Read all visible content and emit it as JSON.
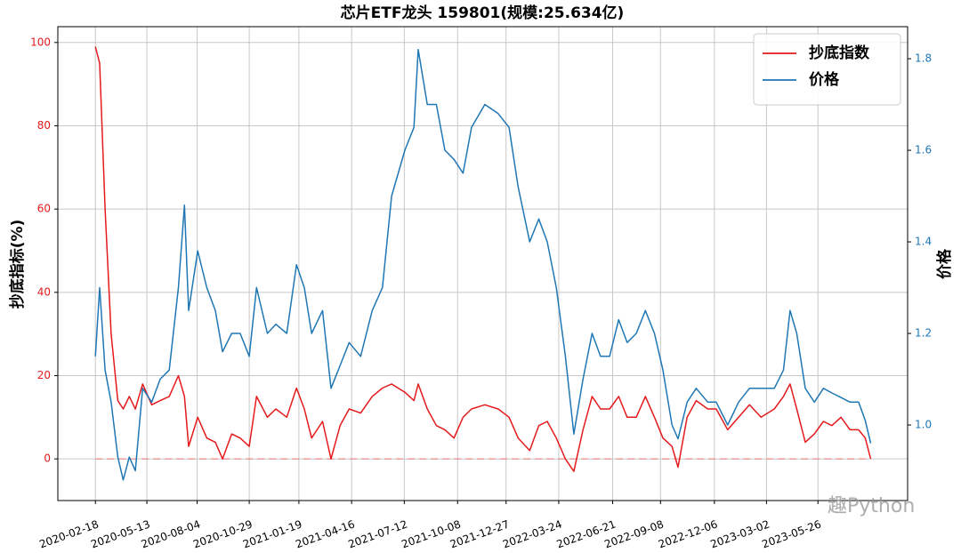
{
  "chart_data": {
    "type": "line",
    "title": "芯片ETF龙头  159801(规模:25.634亿)",
    "ylabel": "抄底指标(%)",
    "y2label": "价格",
    "watermark": "趣Python",
    "x": [
      "2020-02-18",
      "2020-02-25",
      "2020-03-05",
      "2020-03-15",
      "2020-03-26",
      "2020-04-04",
      "2020-04-14",
      "2020-04-24",
      "2020-05-06",
      "2020-05-21",
      "2020-06-04",
      "2020-06-19",
      "2020-07-04",
      "2020-07-14",
      "2020-07-21",
      "2020-08-05",
      "2020-08-20",
      "2020-09-03",
      "2020-09-15",
      "2020-09-30",
      "2020-10-14",
      "2020-10-29",
      "2020-11-10",
      "2020-11-28",
      "2020-12-12",
      "2020-12-30",
      "2021-01-15",
      "2021-01-28",
      "2021-02-09",
      "2021-02-27",
      "2021-03-13",
      "2021-03-28",
      "2021-04-12",
      "2021-05-01",
      "2021-05-20",
      "2021-06-06",
      "2021-06-21",
      "2021-07-13",
      "2021-07-28",
      "2021-08-04",
      "2021-08-19",
      "2021-09-03",
      "2021-09-17",
      "2021-10-02",
      "2021-10-17",
      "2021-10-31",
      "2021-11-22",
      "2021-12-14",
      "2022-01-01",
      "2022-01-16",
      "2022-02-04",
      "2022-02-19",
      "2022-03-05",
      "2022-03-20",
      "2022-04-04",
      "2022-04-18",
      "2022-05-03",
      "2022-05-18",
      "2022-06-01",
      "2022-06-16",
      "2022-07-01",
      "2022-07-15",
      "2022-07-30",
      "2022-08-14",
      "2022-08-29",
      "2022-09-12",
      "2022-09-27",
      "2022-10-07",
      "2022-10-22",
      "2022-11-06",
      "2022-11-25",
      "2022-12-09",
      "2022-12-28",
      "2023-01-15",
      "2023-02-02",
      "2023-02-21",
      "2023-03-15",
      "2023-03-30",
      "2023-04-10",
      "2023-04-21",
      "2023-05-05",
      "2023-05-20",
      "2023-06-04",
      "2023-06-18",
      "2023-07-03",
      "2023-07-18",
      "2023-08-01",
      "2023-08-12",
      "2023-08-21"
    ],
    "series": [
      {
        "name": "抄底指数",
        "color": "#e41a1c",
        "axis": "y",
        "values": [
          99,
          95,
          60,
          30,
          14,
          12,
          15,
          12,
          18,
          13,
          14,
          15,
          20,
          15,
          3,
          10,
          5,
          4,
          0,
          6,
          5,
          3,
          15,
          10,
          12,
          10,
          17,
          12,
          5,
          9,
          0,
          8,
          12,
          11,
          15,
          17,
          18,
          16,
          14,
          18,
          12,
          8,
          7,
          5,
          10,
          12,
          13,
          12,
          10,
          5,
          2,
          8,
          9,
          5,
          0,
          -3,
          7,
          15,
          12,
          12,
          15,
          10,
          10,
          15,
          10,
          5,
          3,
          -2,
          10,
          14,
          12,
          12,
          7,
          10,
          13,
          10,
          12,
          15,
          18,
          12,
          4,
          6,
          9,
          8,
          10,
          7,
          7,
          5,
          0
        ]
      },
      {
        "name": "价格",
        "color": "#1f77b4",
        "axis": "y2",
        "values": [
          1.15,
          1.3,
          1.12,
          1.05,
          0.93,
          0.88,
          0.93,
          0.9,
          1.08,
          1.05,
          1.1,
          1.12,
          1.3,
          1.48,
          1.25,
          1.38,
          1.3,
          1.25,
          1.16,
          1.2,
          1.2,
          1.15,
          1.3,
          1.2,
          1.22,
          1.2,
          1.35,
          1.3,
          1.2,
          1.25,
          1.08,
          1.13,
          1.18,
          1.15,
          1.25,
          1.3,
          1.5,
          1.6,
          1.65,
          1.82,
          1.7,
          1.7,
          1.6,
          1.58,
          1.55,
          1.65,
          1.7,
          1.68,
          1.65,
          1.52,
          1.4,
          1.45,
          1.4,
          1.3,
          1.15,
          0.98,
          1.1,
          1.2,
          1.15,
          1.15,
          1.23,
          1.18,
          1.2,
          1.25,
          1.2,
          1.12,
          1.0,
          0.97,
          1.05,
          1.08,
          1.05,
          1.05,
          1.0,
          1.05,
          1.08,
          1.08,
          1.08,
          1.12,
          1.25,
          1.2,
          1.08,
          1.05,
          1.08,
          1.07,
          1.06,
          1.05,
          1.05,
          1.01,
          0.96
        ]
      }
    ],
    "reference_line": {
      "value": 0,
      "color": "#f08080"
    },
    "xlim": [
      "2019-12-18",
      "2023-10-21"
    ],
    "xticks": [
      "2020-02-18",
      "2020-05-13",
      "2020-08-04",
      "2020-10-29",
      "2021-01-19",
      "2021-04-16",
      "2021-07-12",
      "2021-10-08",
      "2021-12-27",
      "2022-03-24",
      "2022-06-21",
      "2022-09-08",
      "2022-12-06",
      "2023-03-02",
      "2023-05-26"
    ],
    "ylim": [
      -10,
      103.8
    ],
    "yticks": [
      0,
      20,
      40,
      60,
      80,
      100
    ],
    "y2lim": [
      0.835,
      1.87
    ],
    "y2ticks": [
      {
        "value": 1,
        "label": "1.0"
      },
      1.2,
      1.4,
      1.6,
      1.8
    ],
    "grid": true,
    "legend": "upper right"
  }
}
